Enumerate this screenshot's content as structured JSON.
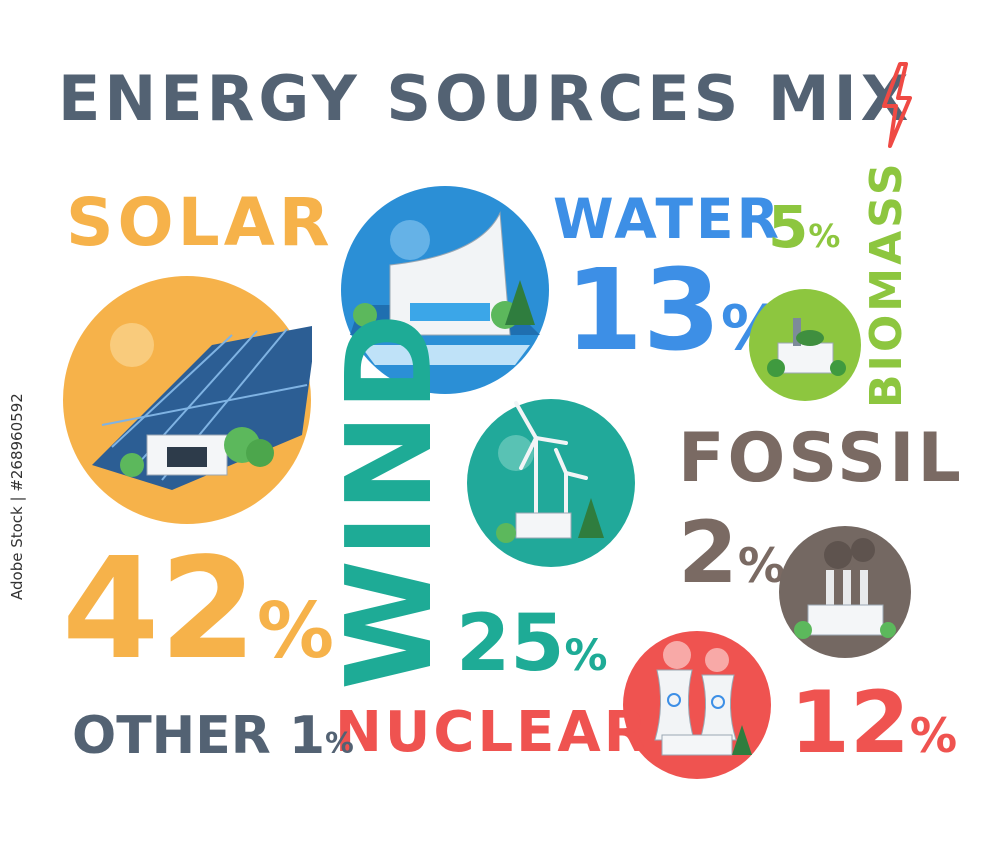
{
  "title": "ENERGY SOURCES MIX",
  "colors": {
    "title": "#536273",
    "bolt": "#ef4a44",
    "solar": "#f6b24a",
    "water": "#3d8fe6",
    "biomass": "#8dc63f",
    "wind": "#1eab96",
    "fossil": "#7a6a63",
    "nuclear": "#ef5350",
    "other": "#536273"
  },
  "sources": {
    "solar": {
      "label": "SOLAR",
      "value": "42",
      "unit": "%"
    },
    "water": {
      "label": "WATER",
      "value": "13",
      "unit": "%"
    },
    "biomass": {
      "label": "BIOMASS",
      "value": "5",
      "unit": "%"
    },
    "wind": {
      "label": "WIND",
      "value": "25",
      "unit": "%"
    },
    "fossil": {
      "label": "FOSSIL",
      "value": "2",
      "unit": "%"
    },
    "nuclear": {
      "label": "NUCLEAR",
      "value": "12",
      "unit": "%"
    },
    "other": {
      "label": "OTHER",
      "value": "1",
      "unit": "%"
    }
  },
  "watermark": "Adobe Stock | #268960592",
  "icons": [
    "lightning-bolt-icon",
    "solar-plant-icon",
    "hydro-dam-icon",
    "biomass-plant-icon",
    "wind-farm-icon",
    "fossil-plant-icon",
    "nuclear-plant-icon"
  ]
}
